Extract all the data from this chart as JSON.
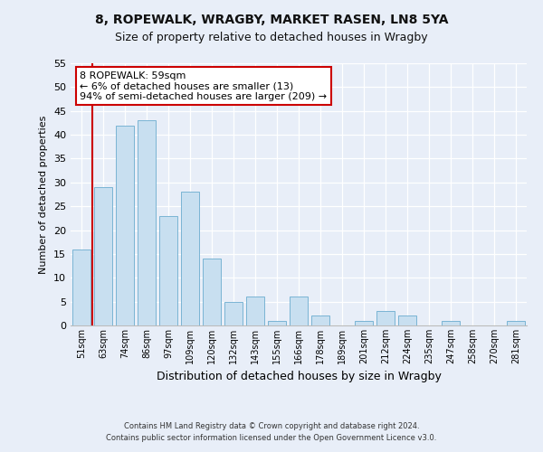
{
  "title": "8, ROPEWALK, WRAGBY, MARKET RASEN, LN8 5YA",
  "subtitle": "Size of property relative to detached houses in Wragby",
  "xlabel": "Distribution of detached houses by size in Wragby",
  "ylabel": "Number of detached properties",
  "bar_labels": [
    "51sqm",
    "63sqm",
    "74sqm",
    "86sqm",
    "97sqm",
    "109sqm",
    "120sqm",
    "132sqm",
    "143sqm",
    "155sqm",
    "166sqm",
    "178sqm",
    "189sqm",
    "201sqm",
    "212sqm",
    "224sqm",
    "235sqm",
    "247sqm",
    "258sqm",
    "270sqm",
    "281sqm"
  ],
  "bar_values": [
    16,
    29,
    42,
    43,
    23,
    28,
    14,
    5,
    6,
    1,
    6,
    2,
    0,
    1,
    3,
    2,
    0,
    1,
    0,
    0,
    1
  ],
  "bar_color": "#c8dff0",
  "bar_edge_color": "#7ab4d4",
  "highlight_color": "#cc0000",
  "annotation_title": "8 ROPEWALK: 59sqm",
  "annotation_line1": "← 6% of detached houses are smaller (13)",
  "annotation_line2": "94% of semi-detached houses are larger (209) →",
  "annotation_box_facecolor": "#ffffff",
  "annotation_box_edgecolor": "#cc0000",
  "ylim": [
    0,
    55
  ],
  "yticks": [
    0,
    5,
    10,
    15,
    20,
    25,
    30,
    35,
    40,
    45,
    50,
    55
  ],
  "footer1": "Contains HM Land Registry data © Crown copyright and database right 2024.",
  "footer2": "Contains public sector information licensed under the Open Government Licence v3.0.",
  "bg_color": "#e8eef8",
  "plot_bg_color": "#e8eef8",
  "grid_color": "#ffffff",
  "title_fontsize": 10,
  "subtitle_fontsize": 9
}
